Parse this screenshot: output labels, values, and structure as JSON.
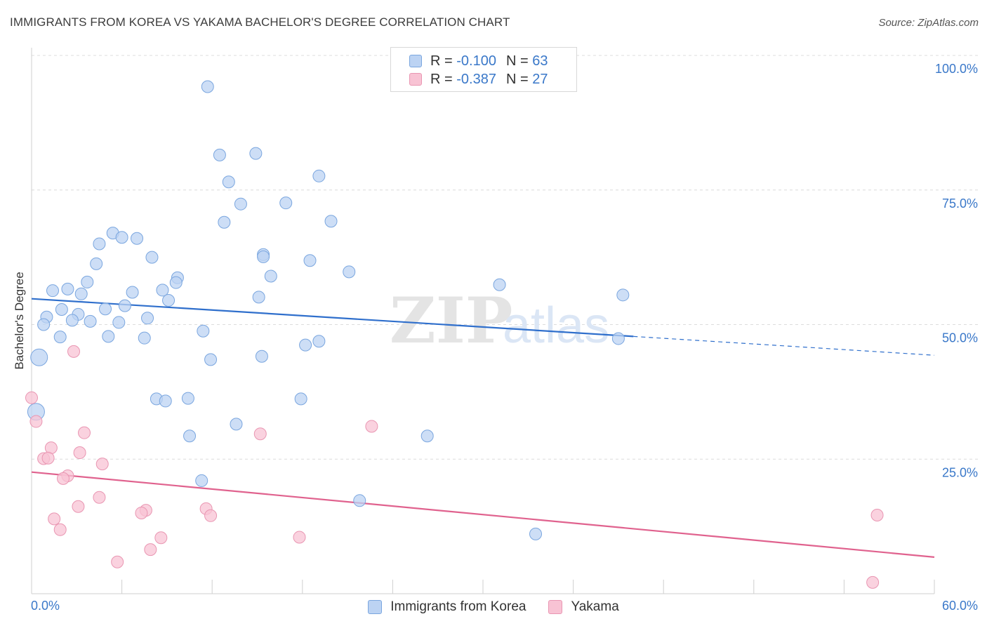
{
  "title": "IMMIGRANTS FROM KOREA VS YAKAMA BACHELOR'S DEGREE CORRELATION CHART",
  "source": "Source: ZipAtlas.com",
  "watermark": {
    "zip": "ZIP",
    "atlas": "atlas"
  },
  "legend": {
    "r_label": "R =",
    "n_label": "N =",
    "rows": [
      {
        "r": "-0.100",
        "n": "63"
      },
      {
        "r": "-0.387",
        "n": "27"
      }
    ]
  },
  "colors": {
    "blue_fill": "#bcd3f3",
    "blue_stroke": "#7aa6df",
    "blue_line": "#2f6fcc",
    "pink_fill": "#f8c3d4",
    "pink_stroke": "#e996b2",
    "pink_line": "#e0628e",
    "tick_label": "#3a78c9",
    "grid": "#dcdcdc"
  },
  "chart_data": {
    "type": "scatter",
    "xlabel": "",
    "ylabel": "Bachelor's Degree",
    "xlim": [
      0,
      60
    ],
    "ylim": [
      0,
      100
    ],
    "x_tick_labels": [
      "0.0%",
      "60.0%"
    ],
    "y_tick_labels": [
      "100.0%",
      "75.0%",
      "50.0%",
      "25.0%"
    ],
    "y_ticks": [
      100,
      75,
      50,
      25
    ],
    "grid": true,
    "series": [
      {
        "name": "Immigrants from Korea",
        "r": -0.1,
        "n": 63,
        "trend": {
          "x": [
            0,
            40
          ],
          "y": [
            54.8,
            47.8
          ],
          "dash_to_x": 60,
          "dash_to_y": 44.3
        },
        "points": [
          {
            "x": 11.7,
            "y": 94.2
          },
          {
            "x": 12.5,
            "y": 81.5
          },
          {
            "x": 14.9,
            "y": 81.8
          },
          {
            "x": 19.1,
            "y": 77.6
          },
          {
            "x": 13.1,
            "y": 76.5
          },
          {
            "x": 13.9,
            "y": 72.4
          },
          {
            "x": 16.9,
            "y": 72.6
          },
          {
            "x": 12.8,
            "y": 69.0
          },
          {
            "x": 19.9,
            "y": 69.2
          },
          {
            "x": 5.4,
            "y": 67.0
          },
          {
            "x": 6.0,
            "y": 66.2
          },
          {
            "x": 7.0,
            "y": 66.0
          },
          {
            "x": 4.5,
            "y": 65.0
          },
          {
            "x": 8.0,
            "y": 62.5
          },
          {
            "x": 15.4,
            "y": 63.0
          },
          {
            "x": 15.4,
            "y": 62.6
          },
          {
            "x": 18.5,
            "y": 61.9
          },
          {
            "x": 4.3,
            "y": 61.3
          },
          {
            "x": 21.1,
            "y": 59.8
          },
          {
            "x": 15.9,
            "y": 59.0
          },
          {
            "x": 9.7,
            "y": 58.7
          },
          {
            "x": 9.6,
            "y": 57.8
          },
          {
            "x": 3.7,
            "y": 57.9
          },
          {
            "x": 31.1,
            "y": 57.4
          },
          {
            "x": 2.4,
            "y": 56.6
          },
          {
            "x": 1.4,
            "y": 56.3
          },
          {
            "x": 8.7,
            "y": 56.4
          },
          {
            "x": 6.7,
            "y": 56.0
          },
          {
            "x": 3.3,
            "y": 55.7
          },
          {
            "x": 39.3,
            "y": 55.5
          },
          {
            "x": 15.1,
            "y": 55.1
          },
          {
            "x": 9.1,
            "y": 54.5
          },
          {
            "x": 6.2,
            "y": 53.5
          },
          {
            "x": 2.0,
            "y": 52.8
          },
          {
            "x": 4.9,
            "y": 52.9
          },
          {
            "x": 3.1,
            "y": 51.9
          },
          {
            "x": 1.0,
            "y": 51.4
          },
          {
            "x": 7.7,
            "y": 51.2
          },
          {
            "x": 2.7,
            "y": 50.8
          },
          {
            "x": 3.9,
            "y": 50.6
          },
          {
            "x": 5.8,
            "y": 50.4
          },
          {
            "x": 0.8,
            "y": 50.0
          },
          {
            "x": 11.4,
            "y": 48.8
          },
          {
            "x": 1.9,
            "y": 47.7
          },
          {
            "x": 5.1,
            "y": 47.8
          },
          {
            "x": 7.5,
            "y": 47.5
          },
          {
            "x": 19.1,
            "y": 46.9
          },
          {
            "x": 18.2,
            "y": 46.2
          },
          {
            "x": 39.0,
            "y": 47.4
          },
          {
            "x": 0.5,
            "y": 43.9
          },
          {
            "x": 15.3,
            "y": 44.1
          },
          {
            "x": 11.9,
            "y": 43.5
          },
          {
            "x": 10.4,
            "y": 36.3
          },
          {
            "x": 8.3,
            "y": 36.2
          },
          {
            "x": 8.9,
            "y": 35.8
          },
          {
            "x": 17.9,
            "y": 36.2
          },
          {
            "x": 0.3,
            "y": 33.8
          },
          {
            "x": 13.6,
            "y": 31.5
          },
          {
            "x": 10.5,
            "y": 29.3
          },
          {
            "x": 26.3,
            "y": 29.3
          },
          {
            "x": 11.3,
            "y": 21.0
          },
          {
            "x": 21.8,
            "y": 17.3
          },
          {
            "x": 33.5,
            "y": 11.1
          }
        ]
      },
      {
        "name": "Yakama",
        "r": -0.387,
        "n": 27,
        "trend": {
          "x": [
            0,
            60
          ],
          "y": [
            22.6,
            6.8
          ]
        },
        "points": [
          {
            "x": 2.8,
            "y": 45.0
          },
          {
            "x": 0.0,
            "y": 36.4
          },
          {
            "x": 0.3,
            "y": 32.0
          },
          {
            "x": 22.6,
            "y": 31.1
          },
          {
            "x": 3.5,
            "y": 29.9
          },
          {
            "x": 15.2,
            "y": 29.7
          },
          {
            "x": 1.3,
            "y": 27.1
          },
          {
            "x": 3.2,
            "y": 26.2
          },
          {
            "x": 0.8,
            "y": 25.1
          },
          {
            "x": 1.1,
            "y": 25.2
          },
          {
            "x": 4.7,
            "y": 24.1
          },
          {
            "x": 2.4,
            "y": 21.9
          },
          {
            "x": 2.1,
            "y": 21.4
          },
          {
            "x": 4.5,
            "y": 17.9
          },
          {
            "x": 3.1,
            "y": 16.2
          },
          {
            "x": 11.6,
            "y": 15.8
          },
          {
            "x": 7.6,
            "y": 15.5
          },
          {
            "x": 7.3,
            "y": 15.0
          },
          {
            "x": 11.9,
            "y": 14.5
          },
          {
            "x": 56.2,
            "y": 14.6
          },
          {
            "x": 1.5,
            "y": 13.9
          },
          {
            "x": 1.9,
            "y": 11.9
          },
          {
            "x": 8.6,
            "y": 10.4
          },
          {
            "x": 17.8,
            "y": 10.5
          },
          {
            "x": 7.9,
            "y": 8.2
          },
          {
            "x": 5.7,
            "y": 5.9
          },
          {
            "x": 55.9,
            "y": 2.1
          }
        ]
      }
    ],
    "legend_position": "top-center"
  }
}
